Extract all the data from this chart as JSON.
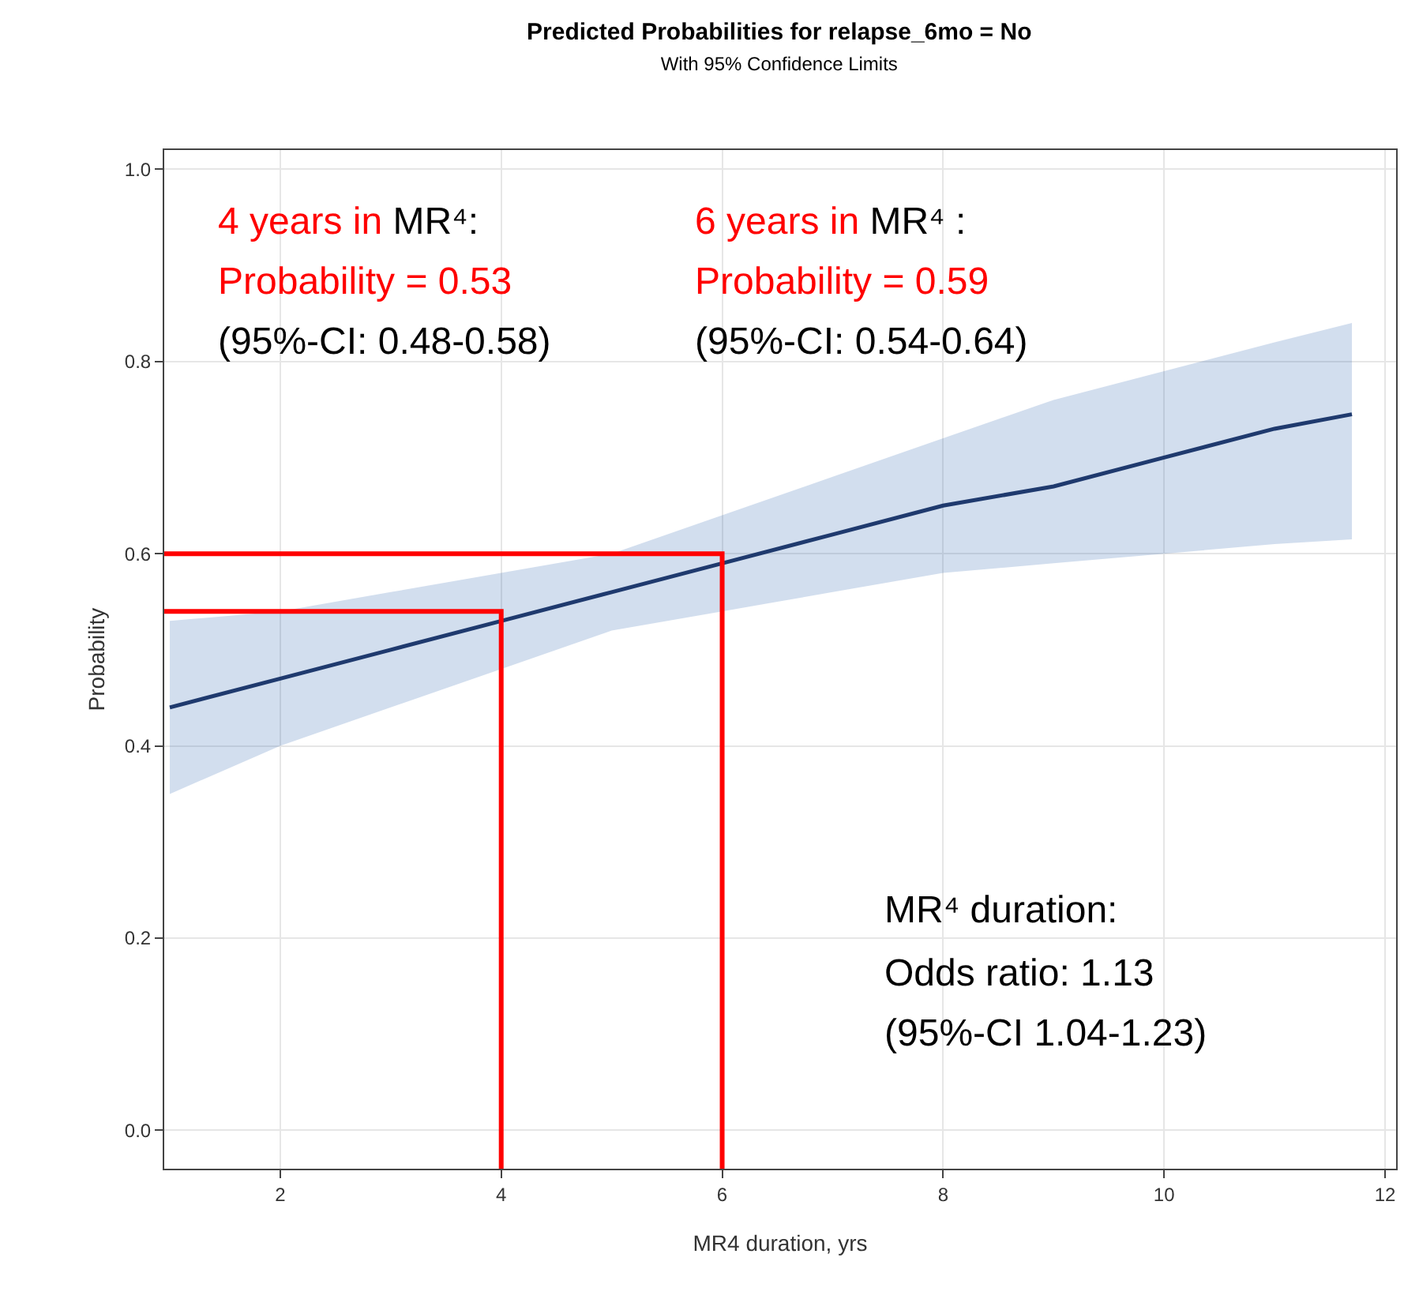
{
  "chart_data": {
    "type": "line",
    "title": "Predicted Probabilities for relapse_6mo = No",
    "subtitle": "With 95% Confidence Limits",
    "xlabel": "MR4 duration, yrs",
    "ylabel": "Probability",
    "xlim": [
      0.95,
      12.1
    ],
    "ylim": [
      -0.04,
      1.02
    ],
    "xticks": [
      2,
      4,
      6,
      8,
      10,
      12
    ],
    "yticks": [
      {
        "value": 0,
        "label": "0.0"
      },
      0.2,
      0.4,
      0.6,
      0.8,
      {
        "value": 1,
        "label": "1.0"
      }
    ],
    "grid": true,
    "marker": "none",
    "line_style": "solid",
    "series": [
      {
        "color": "#1f3a6e",
        "x": [
          1,
          2,
          3,
          4,
          5,
          6,
          7,
          8,
          9,
          10,
          11,
          11.7
        ],
        "values": [
          0.44,
          0.47,
          0.5,
          0.53,
          0.56,
          0.59,
          0.62,
          0.65,
          0.67,
          0.7,
          0.73,
          0.745
        ],
        "lower": [
          0.35,
          0.4,
          0.44,
          0.48,
          0.52,
          0.54,
          0.56,
          0.58,
          0.59,
          0.6,
          0.61,
          0.615
        ],
        "upper": [
          0.53,
          0.54,
          0.56,
          0.58,
          0.6,
          0.64,
          0.68,
          0.72,
          0.76,
          0.79,
          0.82,
          0.84
        ]
      },
      {
        "color": "#ff0000",
        "x": [
          0.95,
          4,
          4
        ],
        "values": [
          0.54,
          0.54,
          -0.04
        ]
      },
      {
        "color": "#ff0000",
        "x": [
          0.95,
          6,
          6
        ],
        "values": [
          0.6,
          0.6,
          -0.04
        ]
      }
    ],
    "annotations": [
      "4 years in",
      "MR⁴:",
      "Probability = 0.53",
      "(95%-CI: 0.48-0.58)",
      "6 years in",
      "MR⁴ :",
      "Probability = 0.59",
      "(95%-CI: 0.54-0.64)",
      "MR⁴ duration:",
      "Odds ratio: 1.13",
      "(95%-CI 1.04-1.23)"
    ]
  }
}
